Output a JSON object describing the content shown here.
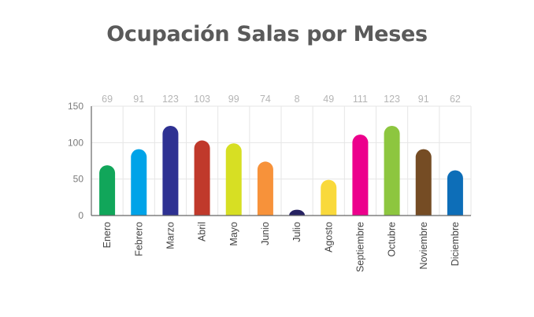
{
  "chart_data": {
    "type": "bar",
    "title": "Ocupación Salas por Meses",
    "xlabel": "",
    "ylabel": "",
    "ylim": [
      0,
      150
    ],
    "yticks": [
      0,
      50,
      100,
      150
    ],
    "grid": true,
    "categories": [
      "Enero",
      "Febrero",
      "Marzo",
      "Abril",
      "Mayo",
      "Junio",
      "Julio",
      "Agosto",
      "Septiembre",
      "Octubre",
      "Noviembre",
      "Diciembre"
    ],
    "values": [
      69,
      91,
      123,
      103,
      99,
      74,
      8,
      49,
      111,
      123,
      91,
      62
    ],
    "colors": [
      "#11a65a",
      "#00a3e8",
      "#2e3192",
      "#c0392b",
      "#d7df23",
      "#f7923a",
      "#262262",
      "#f9d93b",
      "#ec008c",
      "#8dc63f",
      "#754c24",
      "#0d6eb8"
    ]
  }
}
